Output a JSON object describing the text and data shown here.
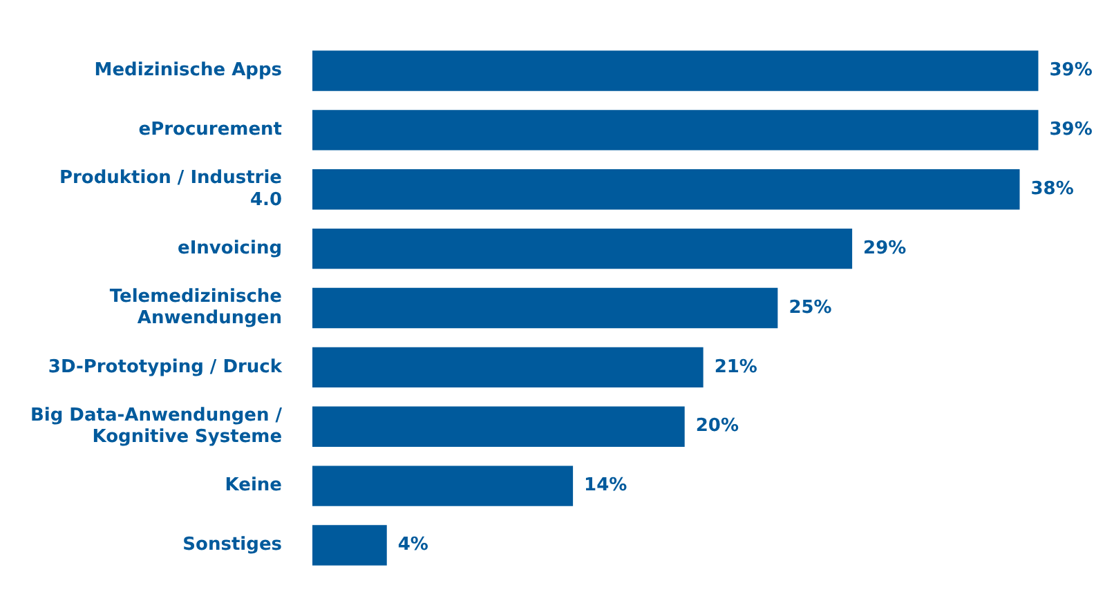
{
  "chart_data": {
    "type": "bar",
    "orientation": "horizontal",
    "categories": [
      "Medizinische Apps",
      "eProcurement",
      "Produktion / Industrie 4.0",
      "eInvoicing",
      "Telemedizinische Anwendungen",
      "3D-Prototyping / Druck",
      "Big Data-Anwendungen / Kognitive Systeme",
      "Keine",
      "Sonstiges"
    ],
    "values": [
      39,
      39,
      38,
      29,
      25,
      21,
      20,
      14,
      4
    ],
    "value_labels": [
      "39%",
      "39%",
      "38%",
      "29%",
      "25%",
      "21%",
      "20%",
      "14%",
      "4%"
    ],
    "color": "#005a9c"
  }
}
